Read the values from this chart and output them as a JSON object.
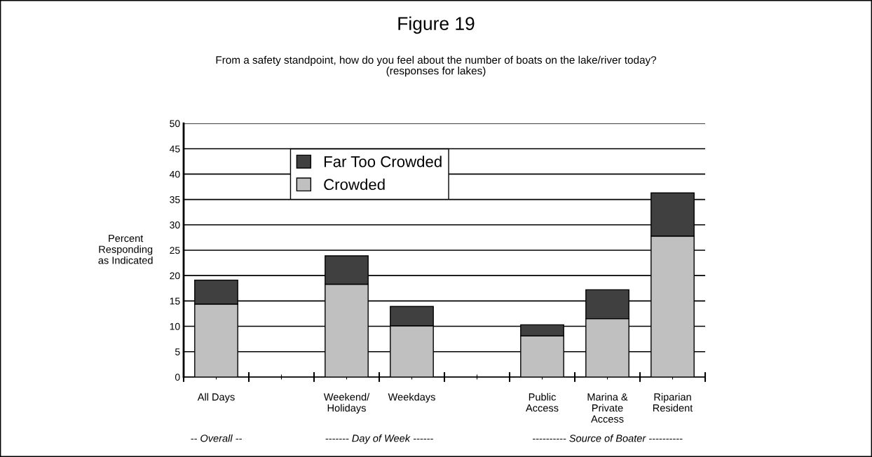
{
  "chart_data": {
    "type": "bar",
    "stacked": true,
    "title": "Figure 19",
    "subtitle": "From a safety standpoint, how do you feel about the number of boats on the lake/river today?\n(responses for lakes)",
    "ylabel": "Percent\nResponding\nas Indicated",
    "categories": [
      "All Days",
      null,
      "Weekend/\nHolidays",
      "Weekdays",
      null,
      "Public\nAccess",
      "Marina &\nPrivate\nAccess",
      "Riparian\nResident"
    ],
    "series": [
      {
        "name": "Crowded",
        "color": "#c0c0c0",
        "values": [
          14.4,
          null,
          18.3,
          10.1,
          null,
          8.1,
          11.5,
          27.8
        ]
      },
      {
        "name": "Far Too Crowded",
        "color": "#404040",
        "values": [
          4.7,
          null,
          5.6,
          3.8,
          null,
          2.2,
          5.7,
          8.5
        ]
      }
    ],
    "ylim": [
      0,
      50
    ],
    "yticks": [
      0,
      5,
      10,
      15,
      20,
      25,
      30,
      35,
      40,
      45,
      50
    ],
    "grid": "y",
    "legend": "top left",
    "annotations": [
      "-- Overall --",
      "------- Day of Week ------",
      "---------- Source of Boater ----------"
    ]
  }
}
